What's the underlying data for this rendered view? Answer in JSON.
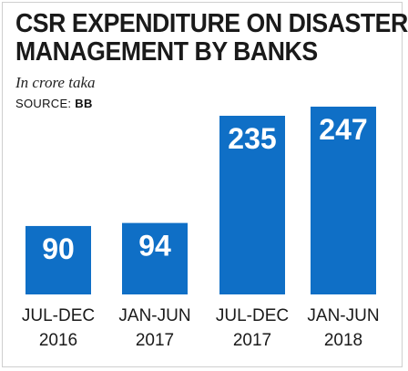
{
  "chart_data": {
    "type": "bar",
    "title": "CSR EXPENDITURE ON DISASTER MANAGEMENT BY BANKS",
    "subtitle": "In crore taka",
    "source_label": "SOURCE:",
    "source_value": "BB",
    "categories": [
      {
        "line1": "JUL-DEC",
        "line2": "2016"
      },
      {
        "line1": "JAN-JUN",
        "line2": "2017"
      },
      {
        "line1": "JUL-DEC",
        "line2": "2017"
      },
      {
        "line1": "JAN-JUN",
        "line2": "2018"
      }
    ],
    "values": [
      90,
      94,
      235,
      247
    ],
    "bar_color": "#0f6fc6",
    "grid": false,
    "ylim": [
      0,
      247
    ]
  }
}
